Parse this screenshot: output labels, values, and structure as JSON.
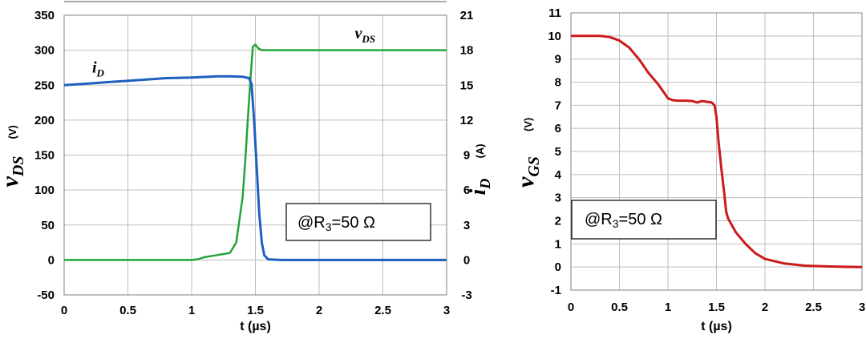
{
  "chart_data": [
    {
      "type": "line",
      "xlabel": "t (µs)",
      "x_ticks": [
        "0",
        "0.5",
        "1",
        "1.5",
        "2",
        "2.5",
        "3"
      ],
      "xlim": [
        0,
        3
      ],
      "ylim_left": [
        -50,
        350
      ],
      "left_ticks": [
        "-50",
        "0",
        "50",
        "100",
        "150",
        "200",
        "250",
        "300",
        "350"
      ],
      "ylim_right": [
        -3,
        21
      ],
      "right_ticks": [
        "-3",
        "0",
        "3",
        "6",
        "9",
        "12",
        "15",
        "18",
        "21"
      ],
      "ylabel_left": {
        "symbol": "v",
        "sub": "DS",
        "unit": "(V)"
      },
      "ylabel_right": {
        "symbol": "i",
        "sub": "D",
        "unit": "(A)"
      },
      "annotation": {
        "prefix": "@R",
        "sub": "3",
        "suffix": "=50  Ω"
      },
      "grid": true,
      "series": [
        {
          "name": {
            "symbol": "v",
            "sub": "DS"
          },
          "axis": "left",
          "color": "#22a33a",
          "x": [
            0,
            0.5,
            1.0,
            1.05,
            1.1,
            1.2,
            1.3,
            1.35,
            1.4,
            1.42,
            1.44,
            1.46,
            1.48,
            1.5,
            1.52,
            1.55,
            1.6,
            1.8,
            2.0,
            2.5,
            3.0
          ],
          "y": [
            0,
            0,
            0,
            1,
            4,
            7,
            10,
            25,
            90,
            140,
            200,
            255,
            305,
            308,
            303,
            300,
            300,
            300,
            300,
            300,
            300
          ]
        },
        {
          "name": {
            "symbol": "i",
            "sub": "D"
          },
          "axis": "right",
          "color": "#1f5fbf",
          "x": [
            0,
            0.2,
            0.4,
            0.6,
            0.8,
            1.0,
            1.2,
            1.3,
            1.4,
            1.45,
            1.47,
            1.49,
            1.51,
            1.53,
            1.55,
            1.57,
            1.6,
            1.7,
            2.0,
            2.5,
            3.0
          ],
          "y": [
            15.0,
            15.15,
            15.3,
            15.45,
            15.6,
            15.65,
            15.75,
            15.75,
            15.72,
            15.6,
            15.1,
            12.0,
            8.0,
            4.0,
            1.5,
            0.4,
            0.05,
            0.0,
            0.0,
            0.0,
            0.0
          ]
        }
      ]
    },
    {
      "type": "line",
      "xlabel": "t (µs)",
      "x_ticks": [
        "0",
        "0.5",
        "1",
        "1.5",
        "2",
        "2.5",
        "3"
      ],
      "xlim": [
        0,
        3
      ],
      "ylim": [
        -1,
        11
      ],
      "y_ticks": [
        "-1",
        "0",
        "1",
        "2",
        "3",
        "4",
        "5",
        "6",
        "7",
        "8",
        "9",
        "10",
        "11"
      ],
      "ylabel": {
        "symbol": "v",
        "sub": "GS",
        "unit": "(V)"
      },
      "annotation": {
        "prefix": "@R",
        "sub": "3",
        "suffix": "=50  Ω"
      },
      "grid": true,
      "series": [
        {
          "color": "#cc1a1a",
          "x": [
            0,
            0.3,
            0.4,
            0.5,
            0.6,
            0.7,
            0.8,
            0.9,
            0.95,
            1.0,
            1.05,
            1.1,
            1.2,
            1.25,
            1.3,
            1.35,
            1.4,
            1.45,
            1.48,
            1.5,
            1.52,
            1.55,
            1.58,
            1.6,
            1.62,
            1.7,
            1.8,
            1.9,
            2.0,
            2.2,
            2.4,
            2.6,
            2.8,
            3.0
          ],
          "y": [
            10.0,
            10.0,
            9.95,
            9.8,
            9.5,
            9.0,
            8.4,
            7.9,
            7.6,
            7.3,
            7.22,
            7.2,
            7.2,
            7.18,
            7.12,
            7.18,
            7.15,
            7.12,
            7.0,
            6.5,
            5.5,
            4.3,
            3.2,
            2.4,
            2.1,
            1.5,
            1.0,
            0.6,
            0.35,
            0.15,
            0.06,
            0.03,
            0.01,
            0.0
          ]
        }
      ]
    }
  ]
}
